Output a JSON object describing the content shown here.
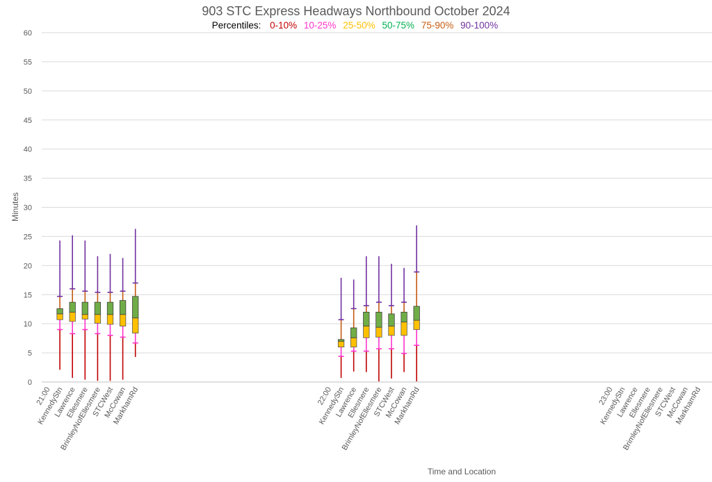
{
  "chart_data": {
    "type": "box",
    "title": "903 STC Express Headways Northbound October 2024",
    "legend": {
      "title": "Percentiles:",
      "items": [
        {
          "label": "0-10%",
          "color": "#c00000"
        },
        {
          "label": "10-25%",
          "color": "#ff33cc"
        },
        {
          "label": "25-50%",
          "color": "#ffc000"
        },
        {
          "label": "50-75%",
          "color": "#00b050"
        },
        {
          "label": "75-90%",
          "color": "#c55a11"
        },
        {
          "label": "90-100%",
          "color": "#7030a0"
        }
      ]
    },
    "xlabel": "Time and Location",
    "ylabel": "Minutes",
    "ylim": [
      0,
      60
    ],
    "yticks": [
      0,
      5,
      10,
      15,
      20,
      25,
      30,
      35,
      40,
      45,
      50,
      55,
      60
    ],
    "grid": true,
    "groups": [
      {
        "time": "21:00",
        "stops": [
          {
            "name": "KennedyStn",
            "min": 2.1,
            "p10": 9.0,
            "p25": 10.7,
            "median": 11.7,
            "p75": 12.6,
            "p90": 14.7,
            "max": 24.3
          },
          {
            "name": "Lawrence",
            "min": 0.7,
            "p10": 8.3,
            "p25": 10.4,
            "median": 12.0,
            "p75": 13.7,
            "p90": 16.0,
            "max": 25.2
          },
          {
            "name": "Ellesmere",
            "min": 0.4,
            "p10": 9.0,
            "p25": 10.8,
            "median": 11.6,
            "p75": 13.7,
            "p90": 15.6,
            "max": 24.3
          },
          {
            "name": "BrimleyNofEllesmere",
            "min": 0.2,
            "p10": 8.3,
            "p25": 10.1,
            "median": 11.6,
            "p75": 13.7,
            "p90": 15.4,
            "max": 21.6
          },
          {
            "name": "STCWest",
            "min": 0.2,
            "p10": 8.0,
            "p25": 9.9,
            "median": 11.6,
            "p75": 13.7,
            "p90": 15.4,
            "max": 22.0
          },
          {
            "name": "McCowan",
            "min": 0.4,
            "p10": 7.7,
            "p25": 9.6,
            "median": 11.6,
            "p75": 14.0,
            "p90": 15.6,
            "max": 21.3
          },
          {
            "name": "MarkhamRd",
            "min": 4.3,
            "p10": 6.7,
            "p25": 8.4,
            "median": 11.0,
            "p75": 14.7,
            "p90": 17.0,
            "max": 26.3
          }
        ]
      },
      {
        "time": "22:00",
        "stops": [
          {
            "name": "KennedyStn",
            "min": 0.7,
            "p10": 4.4,
            "p25": 6.0,
            "median": 7.0,
            "p75": 7.3,
            "p90": 10.7,
            "max": 17.9
          },
          {
            "name": "Lawrence",
            "min": 1.8,
            "p10": 5.3,
            "p25": 6.0,
            "median": 7.6,
            "p75": 9.3,
            "p90": 12.6,
            "max": 17.6
          },
          {
            "name": "Ellesmere",
            "min": 1.7,
            "p10": 5.3,
            "p25": 7.6,
            "median": 9.6,
            "p75": 12.0,
            "p90": 13.1,
            "max": 21.6
          },
          {
            "name": "BrimleyNofEllesmere",
            "min": 0.1,
            "p10": 5.7,
            "p25": 7.7,
            "median": 9.4,
            "p75": 12.0,
            "p90": 13.7,
            "max": 21.6
          },
          {
            "name": "STCWest",
            "min": 0.6,
            "p10": 5.7,
            "p25": 8.0,
            "median": 9.6,
            "p75": 11.7,
            "p90": 13.1,
            "max": 20.3
          },
          {
            "name": "McCowan",
            "min": 1.7,
            "p10": 4.9,
            "p25": 8.0,
            "median": 10.3,
            "p75": 12.0,
            "p90": 13.7,
            "max": 19.6
          },
          {
            "name": "MarkhamRd",
            "min": 0.1,
            "p10": 6.3,
            "p25": 9.0,
            "median": 10.6,
            "p75": 13.0,
            "p90": 18.9,
            "max": 26.9
          }
        ]
      },
      {
        "time": "23:00",
        "stops": [
          {
            "name": "KennedyStn"
          },
          {
            "name": "Lawrence"
          },
          {
            "name": "Ellesmere"
          },
          {
            "name": "BrimleyNofEllesmere"
          },
          {
            "name": "STCWest"
          },
          {
            "name": "McCowan"
          },
          {
            "name": "MarkhamRd"
          }
        ]
      }
    ]
  }
}
